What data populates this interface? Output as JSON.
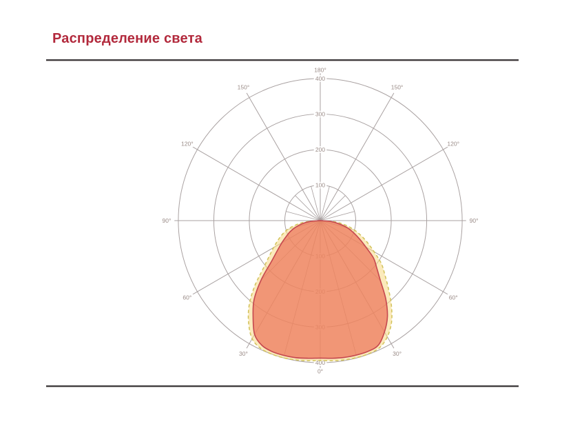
{
  "header": {
    "title": "Распределение света"
  },
  "colors": {
    "title": "#b2293c",
    "rule": "#3d393b",
    "grid": "#a8a0a0",
    "tick_label": "#9a8b87",
    "main_fill": "#ec6e55",
    "main_stroke": "#c64950",
    "halo_fill": "#f8d984",
    "halo_stroke": "#d2c35c"
  },
  "chart_data": {
    "type": "polar",
    "title": "Распределение света",
    "grid": {
      "radial_max": 415,
      "major_angle_step_deg": 30,
      "minor_angle_step_deg": 15,
      "minor_spoke_radius": 100,
      "lower_minor_angles": [
        -75,
        -45,
        -15,
        15,
        45,
        75
      ]
    },
    "radial_ticks": [
      {
        "value": 100,
        "label": "100"
      },
      {
        "value": 200,
        "label": "200"
      },
      {
        "value": 300,
        "label": "300"
      },
      {
        "value": 400,
        "label": "400"
      }
    ],
    "angle_ticks_sides": [
      {
        "value": 30,
        "label": "30°"
      },
      {
        "value": 60,
        "label": "60°"
      },
      {
        "value": 90,
        "label": "90°"
      },
      {
        "value": 120,
        "label": "120°"
      },
      {
        "value": 150,
        "label": "150°"
      }
    ],
    "angle_tick_top": {
      "value": 180,
      "label": "180°"
    },
    "angle_tick_bottom": {
      "value": 0,
      "label": "0°"
    },
    "series": [
      {
        "name": "halo-curve",
        "style": "dashed",
        "stroke": "#d2c35c",
        "fill": "#f8d984",
        "fill_opacity": 0.55,
        "stroke_width": 3.0,
        "dash": "9 7",
        "points": [
          [
            -90,
            0
          ],
          [
            -85,
            42
          ],
          [
            -80,
            70
          ],
          [
            -75,
            95
          ],
          [
            -70,
            114
          ],
          [
            -65,
            132
          ],
          [
            -60,
            152
          ],
          [
            -55,
            176
          ],
          [
            -50,
            210
          ],
          [
            -45,
            262
          ],
          [
            -40,
            312
          ],
          [
            -35,
            352
          ],
          [
            -30,
            384
          ],
          [
            -25,
            397
          ],
          [
            -20,
            400
          ],
          [
            -15,
            400
          ],
          [
            -10,
            398
          ],
          [
            -5,
            396
          ],
          [
            0,
            394
          ],
          [
            5,
            396
          ],
          [
            10,
            398
          ],
          [
            15,
            399
          ],
          [
            20,
            399
          ],
          [
            25,
            395
          ],
          [
            30,
            378
          ],
          [
            35,
            350
          ],
          [
            40,
            312
          ],
          [
            45,
            272
          ],
          [
            50,
            238
          ],
          [
            55,
            210
          ],
          [
            60,
            175
          ],
          [
            65,
            147
          ],
          [
            70,
            122
          ],
          [
            75,
            98
          ],
          [
            80,
            72
          ],
          [
            85,
            44
          ],
          [
            90,
            0
          ]
        ]
      },
      {
        "name": "main-beam-curve",
        "style": "solid",
        "stroke": "#c64950",
        "fill": "#ec6e55",
        "fill_opacity": 0.68,
        "stroke_width": 3.2,
        "dash": "",
        "points": [
          [
            -90,
            0
          ],
          [
            -85,
            28
          ],
          [
            -80,
            52
          ],
          [
            -75,
            72
          ],
          [
            -70,
            90
          ],
          [
            -65,
            106
          ],
          [
            -60,
            125
          ],
          [
            -55,
            148
          ],
          [
            -50,
            180
          ],
          [
            -45,
            235
          ],
          [
            -40,
            290
          ],
          [
            -35,
            330
          ],
          [
            -30,
            370
          ],
          [
            -25,
            388
          ],
          [
            -20,
            393
          ],
          [
            -15,
            393
          ],
          [
            -10,
            392
          ],
          [
            -5,
            389
          ],
          [
            0,
            387
          ],
          [
            5,
            389
          ],
          [
            10,
            391
          ],
          [
            15,
            392
          ],
          [
            20,
            392
          ],
          [
            25,
            387
          ],
          [
            30,
            362
          ],
          [
            35,
            330
          ],
          [
            40,
            287
          ],
          [
            45,
            240
          ],
          [
            50,
            208
          ],
          [
            55,
            183
          ],
          [
            60,
            148
          ],
          [
            65,
            122
          ],
          [
            70,
            100
          ],
          [
            75,
            80
          ],
          [
            80,
            55
          ],
          [
            85,
            30
          ],
          [
            90,
            0
          ]
        ]
      }
    ],
    "layout": {
      "angle_zero_position": "bottom",
      "grid_color": "#a8a0a0",
      "label_color": "#9a8b87"
    }
  }
}
